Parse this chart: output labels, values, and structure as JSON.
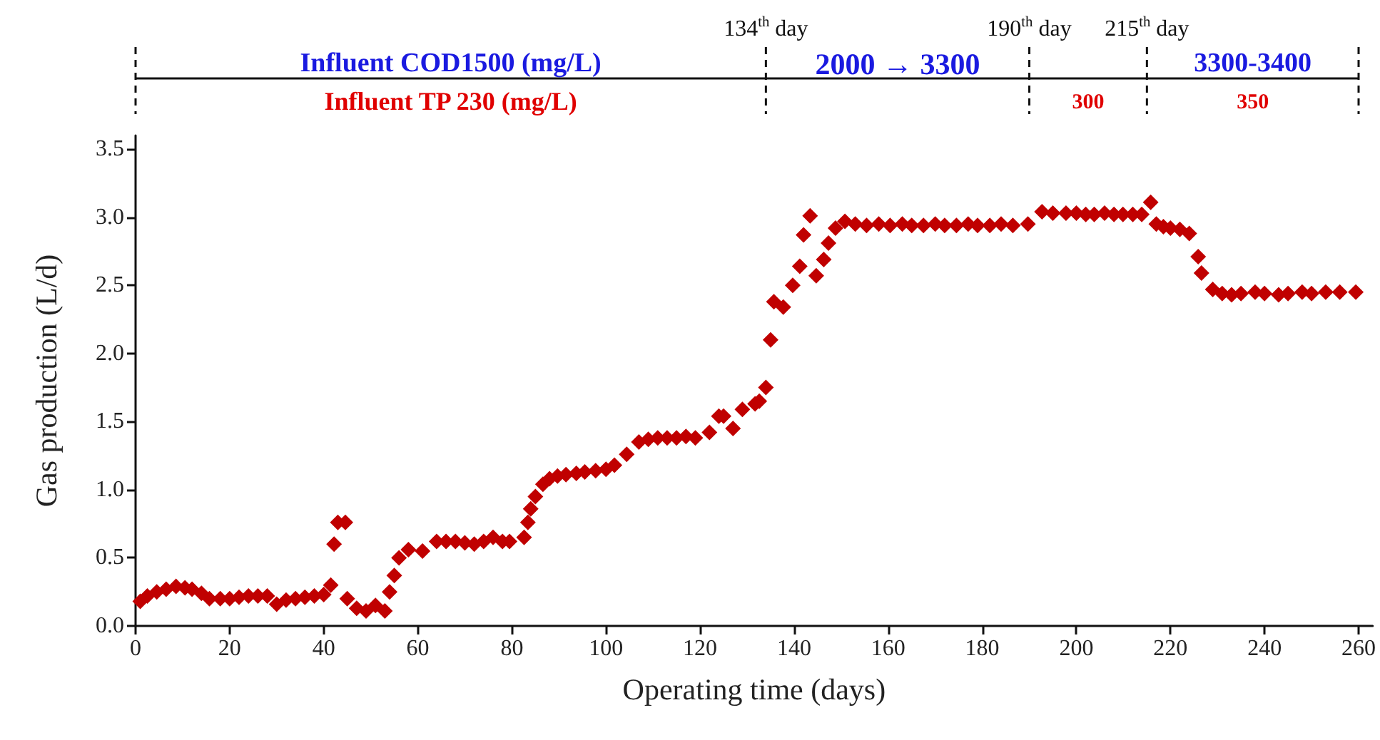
{
  "chart_data": {
    "type": "scatter",
    "xlabel": "Operating time (days)",
    "ylabel": "Gas production (L/d)",
    "annotations": [
      {
        "text": "134$^{th}$ day",
        "x": 134
      },
      {
        "text": "190$^{th}$ day",
        "x": 190
      },
      {
        "text": "215$^{th}$ day",
        "x": 215
      },
      "Influent COD1500 (mg/L)",
      "2000 → 3300",
      "3300-3400",
      "Influent TP 230 (mg/L)",
      "300",
      "350"
    ],
    "series": [
      {
        "color": "#c00000",
        "x": [
          1,
          2.5,
          4.5,
          6.5,
          8.6,
          10.5,
          12,
          14,
          15.7,
          18,
          20,
          22,
          24,
          26,
          28,
          30,
          32,
          34,
          36,
          38,
          40,
          41.5,
          42.2,
          43,
          44.6,
          45,
          47,
          49,
          51,
          53,
          54,
          55,
          56,
          58,
          61,
          64,
          66,
          68,
          70,
          72,
          74,
          76,
          78,
          79.5,
          82.6,
          83.4,
          84,
          85,
          86.6,
          88,
          89.7,
          91.5,
          93.7,
          95.5,
          97.8,
          100,
          101.8,
          104.4,
          107,
          109,
          111,
          113,
          115,
          117,
          119,
          122,
          124,
          125,
          127,
          129,
          131.7,
          132.6,
          134,
          135,
          135.7,
          137.7,
          139.7,
          141.2,
          142,
          143.4,
          144.7,
          146.3,
          147.3,
          148.8,
          150.8,
          153,
          155.4,
          158,
          160.4,
          163,
          165,
          167.5,
          170,
          172,
          174.5,
          177,
          179,
          181.6,
          184,
          186.5,
          189.7,
          192.7,
          195,
          197.8,
          200,
          202,
          203.8,
          206,
          208,
          209.9,
          212,
          213.9,
          215.8,
          217,
          218.5,
          220,
          222,
          224,
          225.9,
          226.6,
          229,
          231,
          233,
          235,
          238,
          240,
          243,
          245,
          248,
          250,
          253,
          256,
          259.4
        ],
        "values": [
          0.18,
          0.22,
          0.25,
          0.27,
          0.29,
          0.28,
          0.27,
          0.24,
          0.2,
          0.2,
          0.2,
          0.21,
          0.22,
          0.22,
          0.22,
          0.16,
          0.19,
          0.2,
          0.21,
          0.22,
          0.23,
          0.3,
          0.6,
          0.76,
          0.76,
          0.2,
          0.13,
          0.11,
          0.15,
          0.11,
          0.25,
          0.37,
          0.5,
          0.56,
          0.55,
          0.62,
          0.62,
          0.62,
          0.61,
          0.6,
          0.62,
          0.65,
          0.62,
          0.62,
          0.65,
          0.76,
          0.86,
          0.95,
          1.04,
          1.08,
          1.1,
          1.11,
          1.12,
          1.13,
          1.14,
          1.15,
          1.18,
          1.26,
          1.35,
          1.37,
          1.38,
          1.38,
          1.38,
          1.39,
          1.38,
          1.42,
          1.54,
          1.54,
          1.45,
          1.59,
          1.63,
          1.65,
          1.75,
          2.1,
          2.38,
          2.34,
          2.5,
          2.64,
          2.87,
          3.01,
          2.57,
          2.69,
          2.81,
          2.92,
          2.97,
          2.95,
          2.94,
          2.95,
          2.94,
          2.95,
          2.94,
          2.94,
          2.95,
          2.94,
          2.94,
          2.95,
          2.94,
          2.94,
          2.95,
          2.94,
          2.95,
          3.04,
          3.03,
          3.03,
          3.03,
          3.02,
          3.02,
          3.03,
          3.02,
          3.02,
          3.02,
          3.02,
          3.11,
          2.95,
          2.93,
          2.92,
          2.91,
          2.88,
          2.71,
          2.59,
          2.47,
          2.44,
          2.43,
          2.44,
          2.45,
          2.44,
          2.43,
          2.44,
          2.45,
          2.44,
          2.45,
          2.45,
          2.45
        ]
      }
    ],
    "marker": "diamond",
    "grid": false,
    "xlim": [
      0,
      263
    ],
    "xticks": [
      0,
      20,
      40,
      60,
      80,
      100,
      120,
      140,
      160,
      180,
      200,
      220,
      240,
      260
    ],
    "ylim": [
      0,
      3.6
    ],
    "yticks": [
      {
        "value": 0,
        "label": "0.0"
      },
      {
        "value": 0.5,
        "label": "0.5"
      },
      {
        "value": 1,
        "label": "1.0"
      },
      {
        "value": 1.5,
        "label": "1.5"
      },
      {
        "value": 2,
        "label": "2.0"
      },
      {
        "value": 2.5,
        "label": "2.5"
      },
      {
        "value": 3,
        "label": "3.0"
      },
      {
        "value": 3.5,
        "label": "3.5"
      }
    ]
  }
}
